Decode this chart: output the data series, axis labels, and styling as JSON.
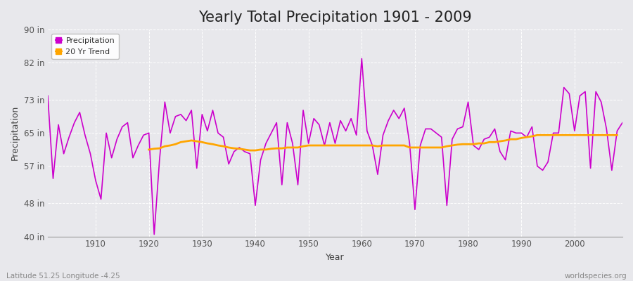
{
  "title": "Yearly Total Precipitation 1901 - 2009",
  "xlabel": "Year",
  "ylabel": "Precipitation",
  "footnote_left": "Latitude 51.25 Longitude -4.25",
  "footnote_right": "worldspecies.org",
  "years": [
    1901,
    1902,
    1903,
    1904,
    1905,
    1906,
    1907,
    1908,
    1909,
    1910,
    1911,
    1912,
    1913,
    1914,
    1915,
    1916,
    1917,
    1918,
    1919,
    1920,
    1921,
    1922,
    1923,
    1924,
    1925,
    1926,
    1927,
    1928,
    1929,
    1930,
    1931,
    1932,
    1933,
    1934,
    1935,
    1936,
    1937,
    1938,
    1939,
    1940,
    1941,
    1942,
    1943,
    1944,
    1945,
    1946,
    1947,
    1948,
    1949,
    1950,
    1951,
    1952,
    1953,
    1954,
    1955,
    1956,
    1957,
    1958,
    1959,
    1960,
    1961,
    1962,
    1963,
    1964,
    1965,
    1966,
    1967,
    1968,
    1969,
    1970,
    1971,
    1972,
    1973,
    1974,
    1975,
    1976,
    1977,
    1978,
    1979,
    1980,
    1981,
    1982,
    1983,
    1984,
    1985,
    1986,
    1987,
    1988,
    1989,
    1990,
    1991,
    1992,
    1993,
    1994,
    1995,
    1996,
    1997,
    1998,
    1999,
    2000,
    2001,
    2002,
    2003,
    2004,
    2005,
    2006,
    2007,
    2008,
    2009
  ],
  "precip": [
    74.0,
    54.0,
    67.0,
    60.0,
    64.0,
    67.5,
    70.0,
    64.5,
    60.0,
    53.5,
    49.0,
    65.0,
    59.0,
    63.5,
    66.5,
    67.5,
    59.0,
    62.0,
    64.5,
    65.0,
    40.5,
    58.5,
    72.5,
    65.0,
    69.0,
    69.5,
    68.0,
    70.5,
    56.5,
    69.5,
    65.5,
    70.5,
    65.0,
    64.0,
    57.5,
    60.5,
    61.5,
    60.5,
    60.0,
    47.5,
    58.5,
    62.5,
    65.0,
    67.5,
    52.5,
    67.5,
    62.5,
    52.5,
    70.5,
    62.5,
    68.5,
    67.0,
    62.0,
    67.5,
    62.5,
    68.0,
    65.5,
    68.5,
    64.5,
    83.0,
    65.5,
    62.0,
    55.0,
    64.5,
    68.0,
    70.5,
    68.5,
    71.0,
    62.5,
    46.5,
    62.0,
    66.0,
    66.0,
    65.0,
    64.0,
    47.5,
    63.5,
    66.0,
    66.5,
    72.5,
    62.0,
    61.0,
    63.5,
    64.0,
    66.0,
    60.5,
    58.5,
    65.5,
    65.0,
    65.0,
    64.0,
    66.5,
    57.0,
    56.0,
    58.0,
    65.0,
    65.0,
    76.0,
    74.5,
    65.5,
    74.0,
    75.0,
    56.5,
    75.0,
    72.5,
    66.0,
    56.0,
    65.5,
    67.5
  ],
  "trend": [
    null,
    null,
    null,
    null,
    null,
    null,
    null,
    null,
    null,
    null,
    null,
    null,
    null,
    null,
    null,
    null,
    null,
    null,
    null,
    61.0,
    61.2,
    61.3,
    61.8,
    62.0,
    62.3,
    62.8,
    63.0,
    63.2,
    63.0,
    62.8,
    62.5,
    62.3,
    62.0,
    61.8,
    61.5,
    61.3,
    61.2,
    61.0,
    60.8,
    60.8,
    61.0,
    61.0,
    61.2,
    61.3,
    61.3,
    61.5,
    61.5,
    61.5,
    61.8,
    62.0,
    62.0,
    62.0,
    62.0,
    62.0,
    62.0,
    62.0,
    62.0,
    62.0,
    62.0,
    62.0,
    62.0,
    62.0,
    61.8,
    62.0,
    62.0,
    62.0,
    62.0,
    62.0,
    61.5,
    61.5,
    61.5,
    61.5,
    61.5,
    61.5,
    61.5,
    61.8,
    62.0,
    62.2,
    62.3,
    62.3,
    62.3,
    62.5,
    62.5,
    62.8,
    62.8,
    63.0,
    63.2,
    63.5,
    63.5,
    63.8,
    64.0,
    64.2,
    64.5,
    64.5,
    64.5,
    64.5,
    64.5,
    64.5,
    64.5,
    64.5,
    64.5,
    64.5,
    64.5,
    64.5,
    64.5,
    64.5,
    64.5,
    64.5
  ],
  "precip_color": "#CC00CC",
  "trend_color": "#FFA500",
  "bg_color": "#E8E8EC",
  "plot_bg_color": "#E8E8EC",
  "grid_color": "#FFFFFF",
  "ylim": [
    40,
    90
  ],
  "yticks": [
    40,
    48,
    57,
    65,
    73,
    82,
    90
  ],
  "ytick_labels": [
    "40 in",
    "48 in",
    "57 in",
    "65 in",
    "73 in",
    "82 in",
    "90 in"
  ],
  "xticks": [
    1910,
    1920,
    1930,
    1940,
    1950,
    1960,
    1970,
    1980,
    1990,
    2000
  ],
  "title_fontsize": 15,
  "label_fontsize": 9,
  "tick_fontsize": 8.5
}
